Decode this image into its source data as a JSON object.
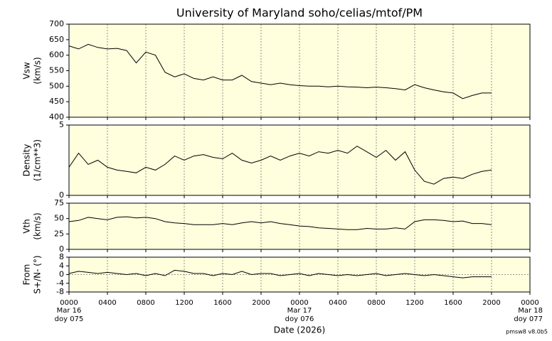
{
  "chart_data": {
    "type": "line",
    "title": "University of Maryland  soho/celias/mtof/PM",
    "xlabel": "Date (2026)",
    "footer": "pmsw8 v8.0b5",
    "xlim": [
      0,
      48
    ],
    "xticks": [
      {
        "value": 0,
        "label": "0000"
      },
      {
        "value": 4,
        "label": "0400"
      },
      {
        "value": 8,
        "label": "0800"
      },
      {
        "value": 12,
        "label": "1200"
      },
      {
        "value": 16,
        "label": "1600"
      },
      {
        "value": 20,
        "label": "2000"
      },
      {
        "value": 24,
        "label": "0000"
      },
      {
        "value": 28,
        "label": "0400"
      },
      {
        "value": 32,
        "label": "0800"
      },
      {
        "value": 36,
        "label": "1200"
      },
      {
        "value": 40,
        "label": "1600"
      },
      {
        "value": 44,
        "label": "2000"
      },
      {
        "value": 48,
        "label": "0000"
      }
    ],
    "date_marks": [
      {
        "value": 0,
        "date": "Mar 16",
        "doy": "doy 075"
      },
      {
        "value": 24,
        "date": "Mar 17",
        "doy": "doy 076"
      },
      {
        "value": 48,
        "date": "Mar 18",
        "doy": "doy 077"
      }
    ],
    "grid": true,
    "x": [
      0,
      1,
      2,
      3,
      4,
      5,
      6,
      7,
      8,
      9,
      10,
      11,
      12,
      13,
      14,
      15,
      16,
      17,
      18,
      19,
      20,
      21,
      22,
      23,
      24,
      25,
      26,
      27,
      28,
      29,
      30,
      31,
      32,
      33,
      34,
      35,
      36,
      37,
      38,
      39,
      40,
      41,
      42,
      43,
      44
    ],
    "panels": [
      {
        "ylabel": [
          "Vsw",
          "(km/s)"
        ],
        "ylim": [
          400,
          700
        ],
        "yticks": [
          400,
          450,
          500,
          550,
          600,
          650,
          700
        ],
        "color": "#000000",
        "values": [
          630,
          620,
          635,
          625,
          620,
          622,
          615,
          575,
          610,
          600,
          545,
          530,
          540,
          525,
          520,
          530,
          520,
          520,
          535,
          515,
          510,
          505,
          510,
          505,
          502,
          500,
          500,
          498,
          500,
          498,
          497,
          495,
          497,
          495,
          492,
          488,
          505,
          495,
          488,
          482,
          478,
          460,
          470,
          478,
          478
        ]
      },
      {
        "ylabel": [
          "Density",
          "(1/cm**3)"
        ],
        "ylim": [
          0,
          5
        ],
        "yticks": [
          0,
          5
        ],
        "color": "#000000",
        "values": [
          2.0,
          3.0,
          2.2,
          2.5,
          2.0,
          1.8,
          1.7,
          1.6,
          2.0,
          1.8,
          2.2,
          2.8,
          2.5,
          2.8,
          2.9,
          2.7,
          2.6,
          3.0,
          2.5,
          2.3,
          2.5,
          2.8,
          2.5,
          2.8,
          3.0,
          2.8,
          3.1,
          3.0,
          3.2,
          3.0,
          3.5,
          3.1,
          2.7,
          3.2,
          2.5,
          3.1,
          1.8,
          1.0,
          0.8,
          1.2,
          1.3,
          1.2,
          1.5,
          1.7,
          1.8
        ]
      },
      {
        "ylabel": [
          "Vth",
          "(km/s)"
        ],
        "ylim": [
          0,
          75
        ],
        "yticks": [
          0,
          25,
          50,
          75
        ],
        "color": "#000000",
        "values": [
          45,
          47,
          52,
          50,
          48,
          52,
          53,
          51,
          52,
          50,
          45,
          43,
          42,
          40,
          40,
          40,
          42,
          40,
          43,
          45,
          43,
          45,
          42,
          40,
          38,
          37,
          35,
          34,
          33,
          32,
          32,
          34,
          33,
          33,
          35,
          33,
          45,
          48,
          48,
          47,
          45,
          46,
          42,
          42,
          40
        ]
      },
      {
        "ylabel": [
          "From",
          "S+/N- (°)"
        ],
        "ylim": [
          -8,
          8
        ],
        "yticks": [
          -8,
          -4,
          0,
          4,
          8
        ],
        "hline": 0,
        "color": "#000000",
        "values": [
          0.5,
          1.5,
          1,
          0.5,
          1,
          0.5,
          0,
          0.5,
          -0.5,
          0.5,
          -0.5,
          2,
          1.5,
          0.5,
          0.5,
          -0.5,
          0.5,
          0,
          1.5,
          0,
          0.5,
          0.5,
          -0.5,
          0,
          0.5,
          -0.5,
          0.5,
          0,
          -0.5,
          0,
          -0.5,
          0,
          0.5,
          -0.5,
          0,
          0.5,
          0,
          -0.5,
          0,
          -0.5,
          -1,
          -1.5,
          -1,
          -1,
          -1
        ]
      }
    ]
  }
}
